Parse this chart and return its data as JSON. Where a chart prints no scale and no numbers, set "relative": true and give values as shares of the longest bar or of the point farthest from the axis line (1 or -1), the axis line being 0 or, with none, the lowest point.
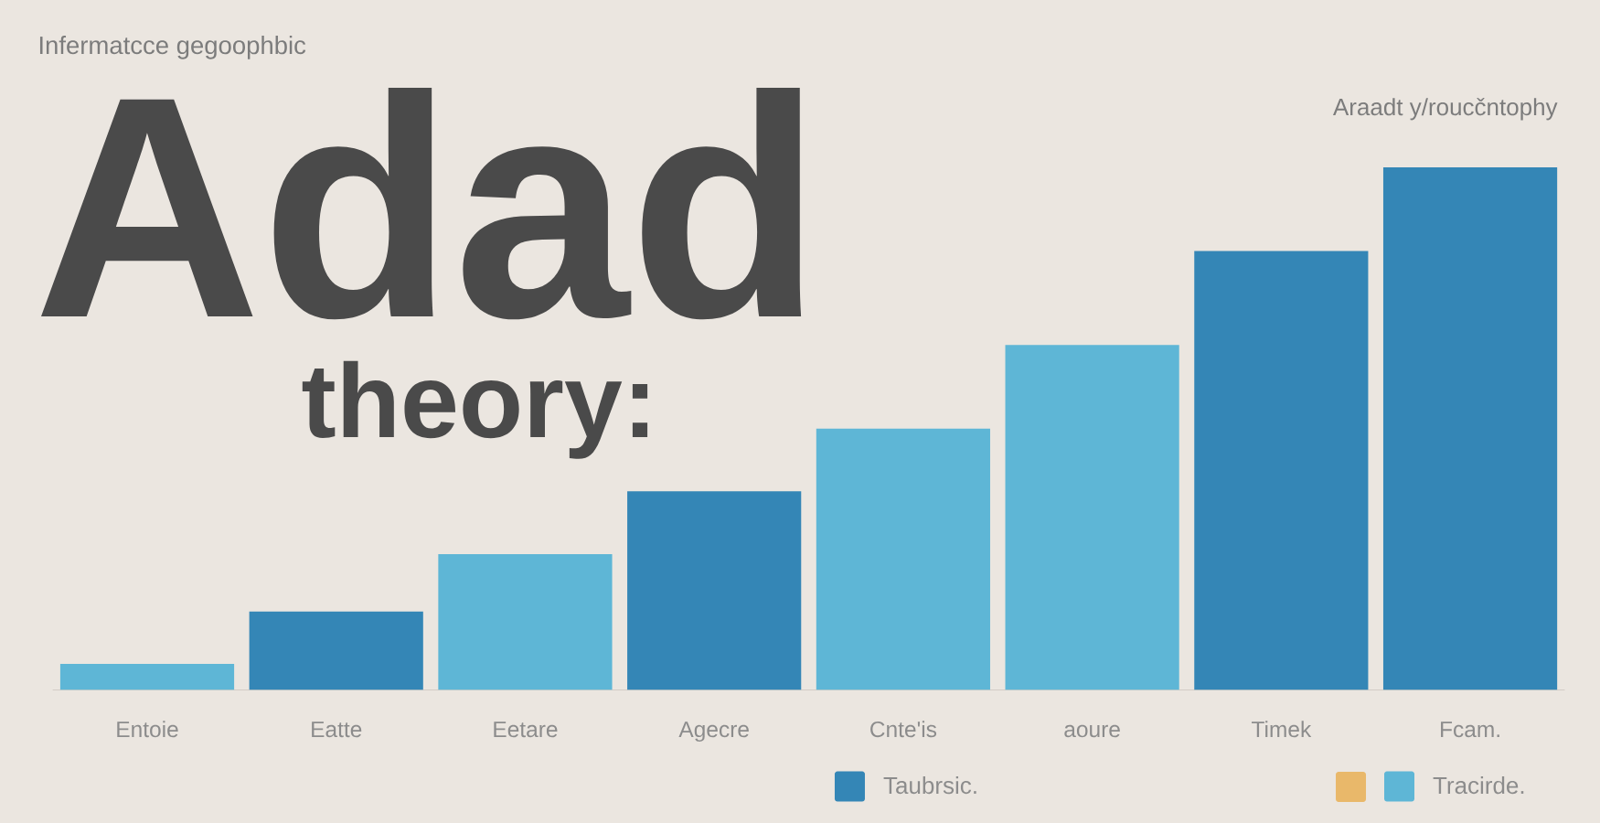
{
  "chart_data": {
    "type": "bar",
    "title": "Adad",
    "subtitle": "theory:",
    "annotations": [
      "Infermatcce gegoophbic",
      "Araadt y/roucčntophy"
    ],
    "categories": [
      "Entoie",
      "Eatte",
      "Eetare",
      "Agecre",
      "Cnte'is",
      "aoure",
      "Timek",
      "Fcam."
    ],
    "relative": true,
    "series": [
      {
        "name": "Taubrsic.",
        "color": "#3486b6",
        "values": [
          null,
          0.15,
          null,
          0.38,
          null,
          null,
          0.84,
          1
        ]
      },
      {
        "name": "Tracirde.",
        "color": "#5eb6d6",
        "values": [
          0.05,
          null,
          0.26,
          null,
          0.5,
          0.66,
          null,
          null
        ]
      }
    ],
    "legend": "bottom right"
  }
}
